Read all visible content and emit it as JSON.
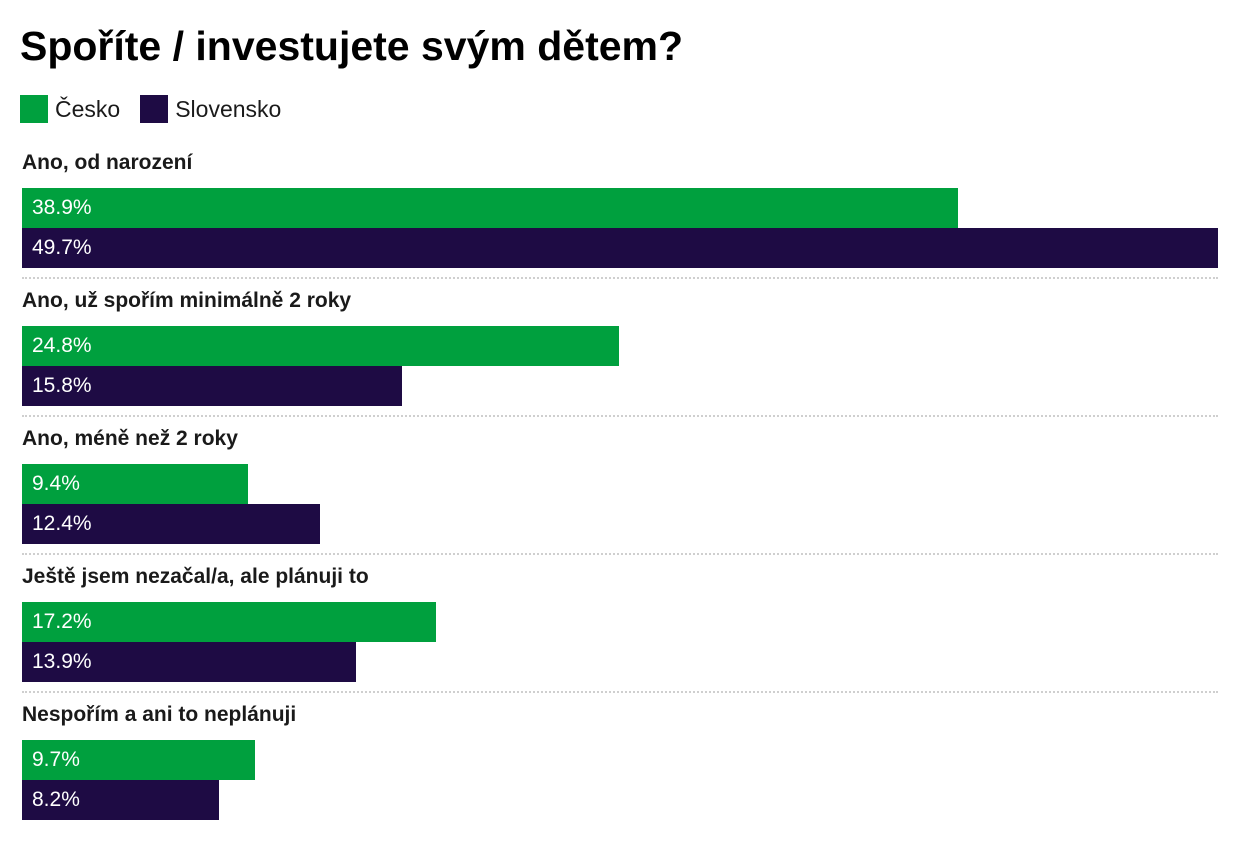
{
  "chart_data": {
    "type": "bar",
    "orientation": "horizontal",
    "title": "Spoříte / investujete svým dětem?",
    "categories": [
      "Ano, od narození",
      "Ano, už spořím minimálně 2 roky",
      "Ano, méně než 2 roky",
      "Ještě jsem nezačal/a, ale plánuji to",
      "Nespořím a ani to neplánuji"
    ],
    "series": [
      {
        "name": "Česko",
        "color": "#00a03e",
        "values": [
          38.9,
          24.8,
          9.4,
          17.2,
          9.7
        ],
        "labels": [
          "38.9%",
          "24.8%",
          "9.4%",
          "17.2%",
          "9.7%"
        ]
      },
      {
        "name": "Slovensko",
        "color": "#1e0b44",
        "values": [
          49.7,
          15.8,
          12.4,
          13.9,
          8.2
        ],
        "labels": [
          "49.7%",
          "15.8%",
          "12.4%",
          "13.9%",
          "8.2%"
        ]
      }
    ],
    "xlim": [
      0,
      49.7
    ],
    "legend": "top-left",
    "grid": false
  }
}
